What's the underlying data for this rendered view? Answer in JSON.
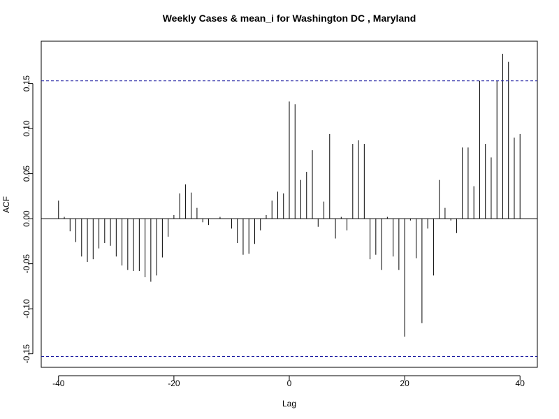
{
  "chart_data": {
    "type": "bar",
    "title": "Weekly Cases & mean_i for Washington DC , Maryland",
    "xlabel": "Lag",
    "ylabel": "ACF",
    "xlim": [
      -43,
      43
    ],
    "ylim": [
      -0.165,
      0.197
    ],
    "xticks": [
      -40,
      -20,
      0,
      20,
      40
    ],
    "yticks": [
      -0.15,
      -0.1,
      -0.05,
      0.0,
      0.05,
      0.1,
      0.15
    ],
    "ytick_labels": [
      "-0.15",
      "-0.10",
      "-0.05",
      "0.00",
      "0.05",
      "0.10",
      "0.15"
    ],
    "confidence_bounds": [
      0.153,
      -0.153
    ],
    "grid": false,
    "x": [
      -40,
      -39,
      -38,
      -37,
      -36,
      -35,
      -34,
      -33,
      -32,
      -31,
      -30,
      -29,
      -28,
      -27,
      -26,
      -25,
      -24,
      -23,
      -22,
      -21,
      -20,
      -19,
      -18,
      -17,
      -16,
      -15,
      -14,
      -13,
      -12,
      -11,
      -10,
      -9,
      -8,
      -7,
      -6,
      -5,
      -4,
      -3,
      -2,
      -1,
      0,
      1,
      2,
      3,
      4,
      5,
      6,
      7,
      8,
      9,
      10,
      11,
      12,
      13,
      14,
      15,
      16,
      17,
      18,
      19,
      20,
      21,
      22,
      23,
      24,
      25,
      26,
      27,
      28,
      29,
      30,
      31,
      32,
      33,
      34,
      35,
      36,
      37,
      38,
      39,
      40
    ],
    "values": [
      0.02,
      0.002,
      -0.014,
      -0.026,
      -0.042,
      -0.048,
      -0.045,
      -0.033,
      -0.027,
      -0.03,
      -0.042,
      -0.052,
      -0.057,
      -0.058,
      -0.058,
      -0.065,
      -0.07,
      -0.063,
      -0.043,
      -0.02,
      0.004,
      0.028,
      0.038,
      0.029,
      0.012,
      -0.004,
      -0.007,
      0.0,
      0.002,
      0.0,
      -0.011,
      -0.027,
      -0.04,
      -0.039,
      -0.028,
      -0.013,
      0.004,
      0.02,
      0.03,
      0.028,
      0.13,
      0.127,
      0.043,
      0.052,
      0.076,
      -0.009,
      0.019,
      0.094,
      -0.022,
      0.002,
      -0.013,
      0.083,
      0.087,
      0.083,
      -0.045,
      -0.04,
      -0.057,
      0.002,
      -0.042,
      -0.057,
      -0.131,
      -0.002,
      -0.044,
      -0.116,
      -0.011,
      -0.063,
      0.043,
      0.012,
      -0.002,
      -0.016,
      0.079,
      0.079,
      0.036,
      0.153,
      0.083,
      0.068,
      0.153,
      0.183,
      0.174,
      0.09,
      0.094
    ]
  }
}
